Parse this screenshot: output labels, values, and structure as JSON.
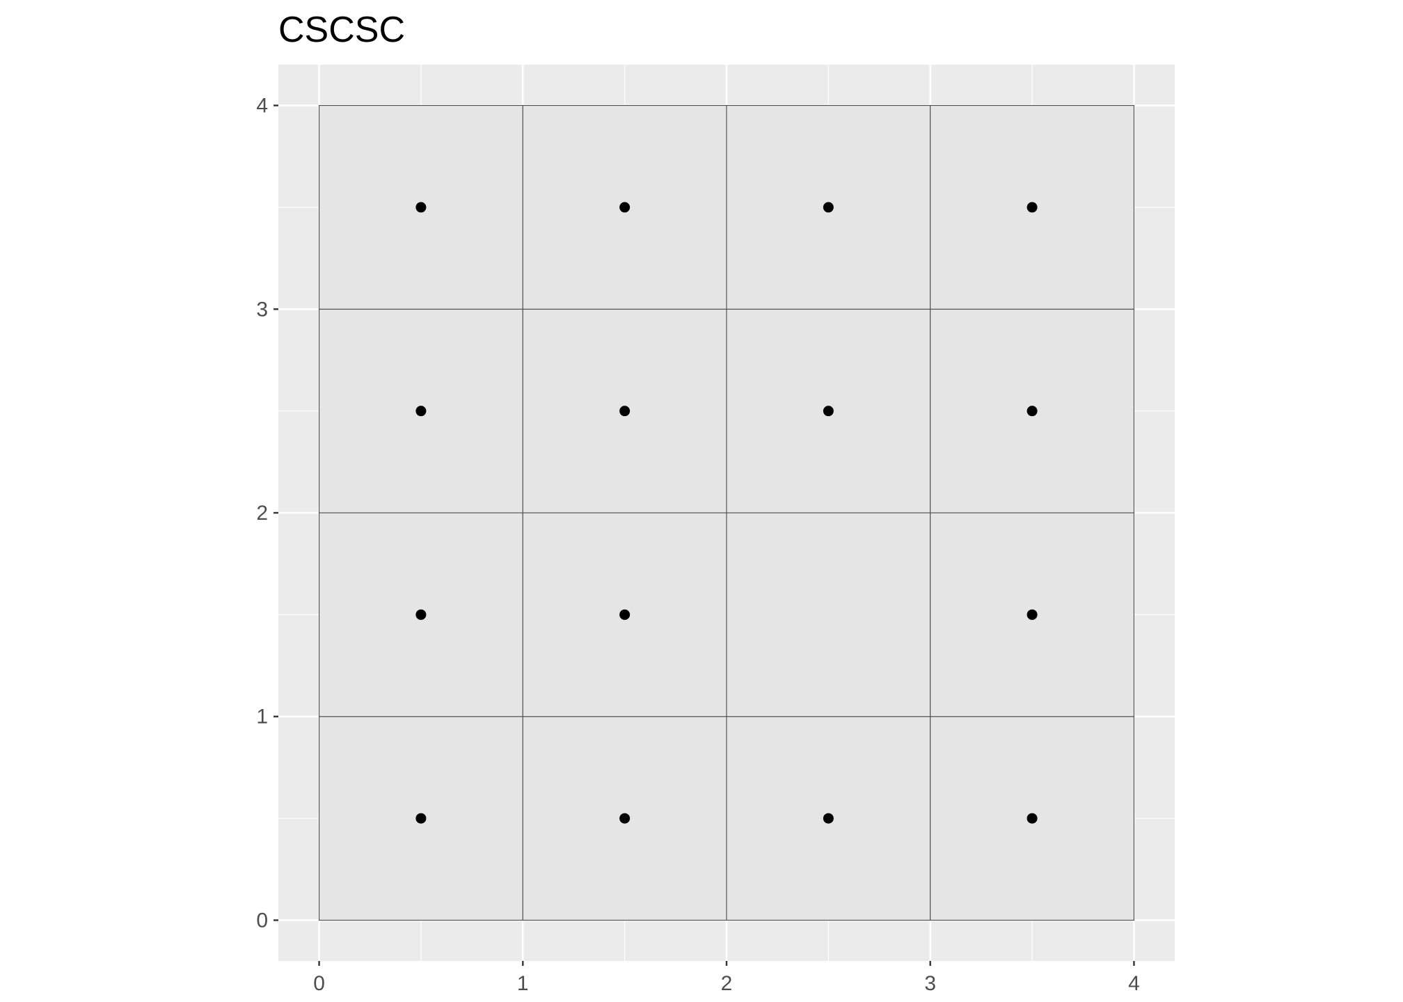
{
  "chart_data": {
    "type": "scatter",
    "title": "CSCSC",
    "xlabel": "",
    "ylabel": "",
    "xlim": [
      -0.2,
      4.2
    ],
    "ylim": [
      -0.2,
      4.2
    ],
    "x_ticks": [
      "0",
      "1",
      "2",
      "3",
      "4"
    ],
    "y_ticks": [
      "0",
      "1",
      "2",
      "3",
      "4"
    ],
    "grid": true,
    "legend": "none",
    "tiles": [
      {
        "x": 0,
        "y": 0
      },
      {
        "x": 1,
        "y": 0
      },
      {
        "x": 2,
        "y": 0
      },
      {
        "x": 3,
        "y": 0
      },
      {
        "x": 0,
        "y": 1
      },
      {
        "x": 1,
        "y": 1
      },
      {
        "x": 2,
        "y": 1
      },
      {
        "x": 3,
        "y": 1
      },
      {
        "x": 0,
        "y": 2
      },
      {
        "x": 1,
        "y": 2
      },
      {
        "x": 2,
        "y": 2
      },
      {
        "x": 3,
        "y": 2
      },
      {
        "x": 0,
        "y": 3
      },
      {
        "x": 1,
        "y": 3
      },
      {
        "x": 2,
        "y": 3
      },
      {
        "x": 3,
        "y": 3
      }
    ],
    "points": [
      {
        "x": 0.5,
        "y": 0.5
      },
      {
        "x": 1.5,
        "y": 0.5
      },
      {
        "x": 2.5,
        "y": 0.5
      },
      {
        "x": 3.5,
        "y": 0.5
      },
      {
        "x": 0.5,
        "y": 1.5
      },
      {
        "x": 1.5,
        "y": 1.5
      },
      {
        "x": 3.5,
        "y": 1.5
      },
      {
        "x": 0.5,
        "y": 2.5
      },
      {
        "x": 1.5,
        "y": 2.5
      },
      {
        "x": 2.5,
        "y": 2.5
      },
      {
        "x": 3.5,
        "y": 2.5
      },
      {
        "x": 0.5,
        "y": 3.5
      },
      {
        "x": 1.5,
        "y": 3.5
      },
      {
        "x": 2.5,
        "y": 3.5
      },
      {
        "x": 3.5,
        "y": 3.5
      }
    ],
    "colors": {
      "panel_background": "#ebebeb",
      "grid_line": "#ffffff",
      "tile_fill": "#e5e5e5",
      "tile_border": "#4d4d4d",
      "point": "#000000",
      "tick_mark": "#333333"
    }
  }
}
